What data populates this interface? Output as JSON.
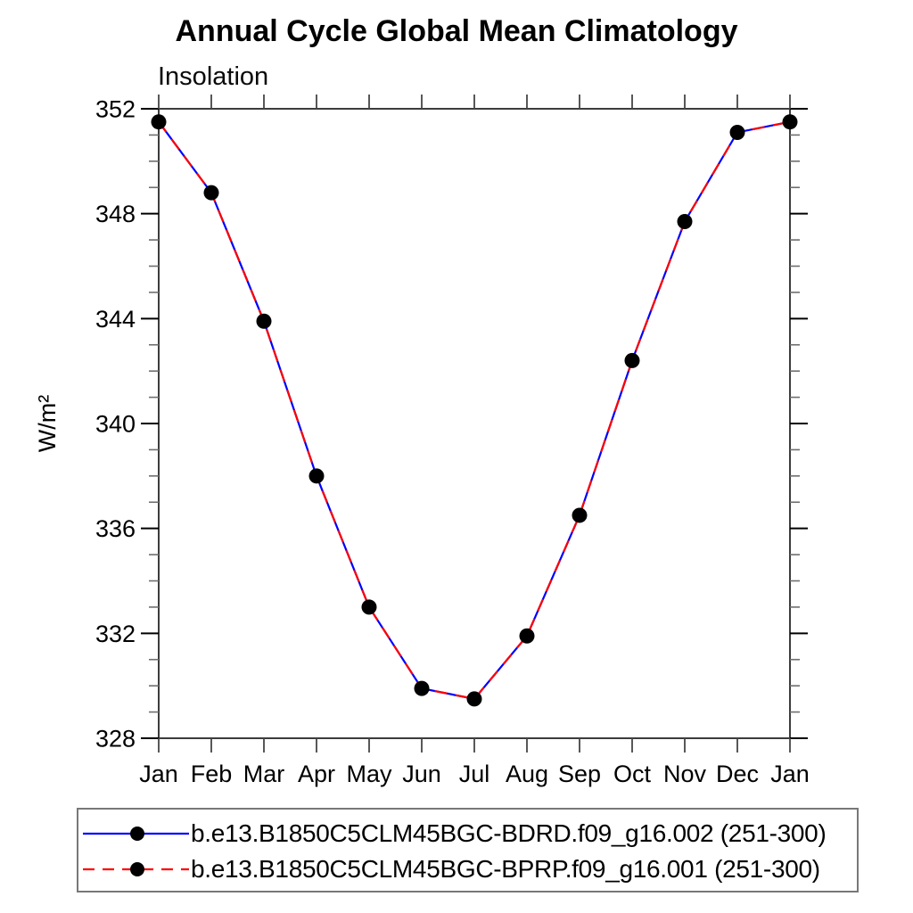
{
  "header": {
    "title": "Annual Cycle Global Mean Climatology",
    "subtitle": "Insolation"
  },
  "chart_data": {
    "type": "line",
    "title": "Annual Cycle Global Mean Climatology",
    "subtitle": "Insolation",
    "ylabel": "W/m²",
    "xlabel": "",
    "x_categories": [
      "Jan",
      "Feb",
      "Mar",
      "Apr",
      "May",
      "Jun",
      "Jul",
      "Aug",
      "Sep",
      "Oct",
      "Nov",
      "Dec",
      "Jan"
    ],
    "ylim": [
      328,
      352
    ],
    "ytick_major_interval": 4,
    "ytick_minor_interval": 1,
    "ytick_labels": [
      "328",
      "332",
      "336",
      "340",
      "344",
      "348",
      "352"
    ],
    "grid": false,
    "legend_position": "bottom",
    "series": [
      {
        "name": "b.e13.B1850C5CLM45BGC-BDRD.f09_g16.002 (251-300)",
        "color": "#0000ff",
        "line_style": "solid",
        "marker": "filled-circle",
        "marker_color": "#000000",
        "values": [
          351.5,
          348.8,
          343.9,
          338.0,
          333.0,
          329.9,
          329.5,
          331.9,
          336.5,
          342.4,
          347.7,
          351.1,
          351.5
        ]
      },
      {
        "name": "b.e13.B1850C5CLM45BGC-BPRP.f09_g16.001 (251-300)",
        "color": "#ff0000",
        "line_style": "dashed",
        "marker": "filled-circle",
        "marker_color": "#000000",
        "values": [
          351.5,
          348.8,
          343.9,
          338.0,
          333.0,
          329.9,
          329.5,
          331.9,
          336.5,
          342.4,
          347.7,
          351.1,
          351.5
        ]
      }
    ]
  }
}
